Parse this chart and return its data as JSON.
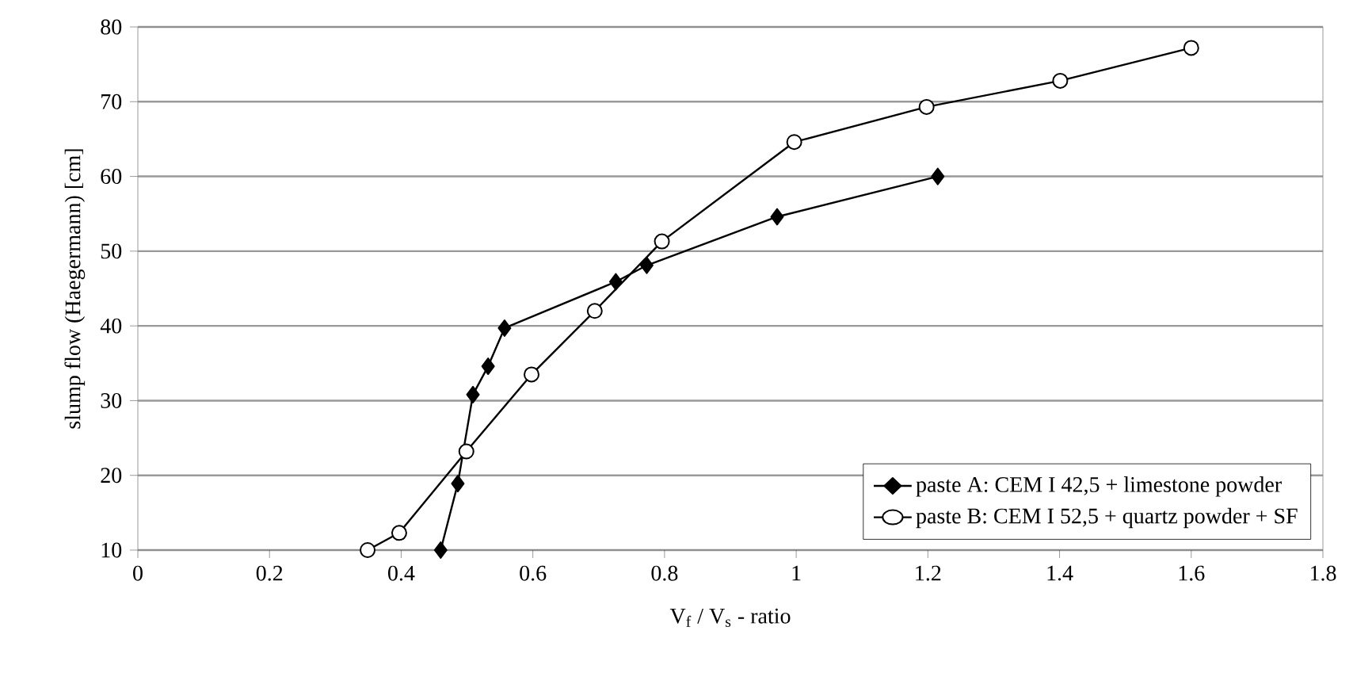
{
  "chart_data": {
    "type": "line",
    "xlabel": "V$_{f}$ / V$_{s}$ - ratio",
    "ylabel": "slump flow (Haegermann) [cm]",
    "xlim": [
      0,
      1.8
    ],
    "ylim": [
      10,
      80
    ],
    "xticks": [
      0,
      0.2,
      0.4,
      0.6,
      0.8,
      1,
      1.2,
      1.4,
      1.6,
      1.8
    ],
    "yticks": [
      10,
      20,
      30,
      40,
      50,
      60,
      70,
      80
    ],
    "grid": "y",
    "legend": "bottom right",
    "line_style": "solid",
    "series": [
      {
        "name": "paste A: CEM I 42,5 + limestone powder",
        "color": "#000000",
        "marker": "diamond",
        "x": [
          0.46,
          0.486,
          0.509,
          0.532,
          0.557,
          0.726,
          0.773,
          0.971,
          1.215
        ],
        "values": [
          10,
          18.9,
          30.8,
          34.6,
          39.7,
          45.9,
          48.1,
          54.6,
          60
        ]
      },
      {
        "name": "paste B: CEM I 52,5 + quartz powder + SF",
        "color": "#000000",
        "marker": "circle",
        "x": [
          0.349,
          0.397,
          0.499,
          0.598,
          0.694,
          0.796,
          0.997,
          1.198,
          1.401,
          1.6
        ],
        "values": [
          10,
          12.3,
          23.2,
          33.5,
          42,
          51.3,
          64.6,
          69.3,
          72.8,
          77.2
        ]
      }
    ]
  }
}
